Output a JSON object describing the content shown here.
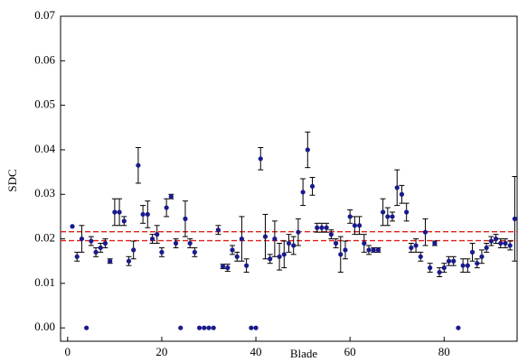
{
  "chart_data": {
    "type": "scatter",
    "x_label": "Blade",
    "y_label": "SDC",
    "xlim": [
      -1.5,
      95.5
    ],
    "ylim": [
      -0.003,
      0.07
    ],
    "xticks": [
      0,
      20,
      40,
      60,
      80
    ],
    "yticks": [
      {
        "value": 0,
        "label": "0.00"
      },
      0.01,
      0.02,
      0.03,
      0.04,
      0.05,
      0.06,
      0.07
    ],
    "reference_lines": [
      0.0196,
      0.0216
    ],
    "reference_color": "#e0201a",
    "series": [
      {
        "name": null,
        "color": "#1a1a8c",
        "x": [
          1,
          2,
          3,
          4,
          5,
          6,
          7,
          8,
          9,
          10,
          11,
          12,
          13,
          14,
          15,
          16,
          17,
          18,
          19,
          20,
          21,
          22,
          23,
          24,
          25,
          26,
          27,
          28,
          29,
          30,
          31,
          32,
          33,
          34,
          35,
          36,
          37,
          38,
          39,
          40,
          41,
          42,
          43,
          44,
          45,
          46,
          47,
          48,
          49,
          50,
          51,
          52,
          53,
          54,
          55,
          56,
          57,
          58,
          59,
          60,
          61,
          62,
          63,
          64,
          65,
          66,
          67,
          68,
          69,
          70,
          71,
          72,
          73,
          74,
          75,
          76,
          77,
          78,
          79,
          80,
          81,
          82,
          83,
          84,
          85,
          86,
          87,
          88,
          89,
          90,
          91,
          92,
          93,
          94,
          95
        ],
        "values": [
          0.0228,
          0.016,
          0.02,
          0,
          0.0195,
          0.017,
          0.018,
          0.019,
          0.015,
          0.026,
          0.026,
          0.024,
          0.015,
          0.0175,
          0.0365,
          0.0255,
          0.0255,
          0.02,
          0.021,
          0.017,
          0.027,
          0.0295,
          0.019,
          0,
          0.0245,
          0.019,
          0.017,
          0,
          0,
          0,
          0,
          0.022,
          0.0138,
          0.0135,
          0.0175,
          0.016,
          0.02,
          0.014,
          0,
          0,
          0.038,
          0.0205,
          0.0155,
          0.02,
          0.016,
          0.0165,
          0.019,
          0.0185,
          0.0215,
          0.0305,
          0.04,
          0.0318,
          0.0225,
          0.0225,
          0.0225,
          0.021,
          0.019,
          0.0165,
          0.0175,
          0.025,
          0.023,
          0.023,
          0.019,
          0.0175,
          0.0175,
          0.0175,
          0.026,
          0.025,
          0.025,
          0.0315,
          0.03,
          0.026,
          0.018,
          0.0185,
          0.016,
          0.0215,
          0.0135,
          0.019,
          0.0125,
          0.0135,
          0.015,
          0.015,
          0,
          0.014,
          0.014,
          0.017,
          0.0145,
          0.016,
          0.018,
          0.0195,
          0.02,
          0.019,
          0.019,
          0.0185,
          0.0245
        ],
        "errors": [
          0,
          0.001,
          0.003,
          0,
          0.001,
          0.001,
          0.001,
          0.001,
          0.0005,
          0.003,
          0.003,
          0.001,
          0.001,
          0.002,
          0.004,
          0.002,
          0.003,
          0.001,
          0.002,
          0.001,
          0.002,
          0.0005,
          0.001,
          0,
          0.004,
          0.001,
          0.001,
          0,
          0,
          0,
          0,
          0.001,
          0.0005,
          0.0008,
          0.001,
          0.001,
          0.005,
          0.0015,
          0,
          0,
          0.0025,
          0.005,
          0.001,
          0.004,
          0.003,
          0.003,
          0.002,
          0.002,
          0.003,
          0.003,
          0.004,
          0.002,
          0.001,
          0.001,
          0.001,
          0.001,
          0.001,
          0.004,
          0.002,
          0.0015,
          0.002,
          0.002,
          0.002,
          0.001,
          0.0005,
          0.0005,
          0.003,
          0.002,
          0.001,
          0.004,
          0.002,
          0.002,
          0.001,
          0.0015,
          0.001,
          0.003,
          0.001,
          0.0005,
          0.001,
          0.001,
          0.001,
          0.001,
          0,
          0.0015,
          0.0015,
          0.002,
          0.001,
          0.0015,
          0.001,
          0.001,
          0.001,
          0.001,
          0.001,
          0.001,
          0.0095
        ]
      }
    ]
  }
}
